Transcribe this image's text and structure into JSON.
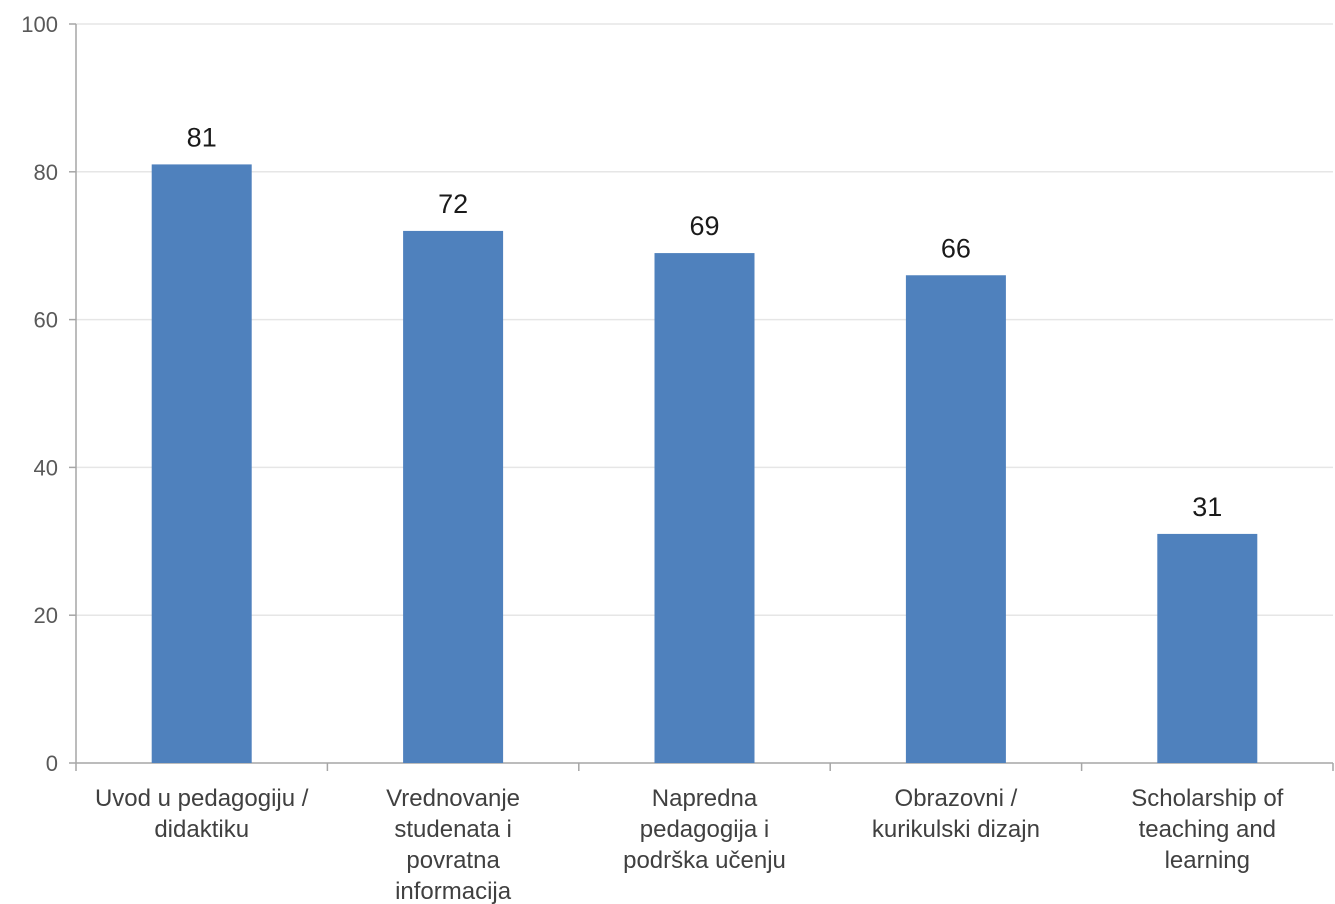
{
  "chart_data": {
    "type": "bar",
    "categories": [
      [
        "Uvod u pedagogiju /",
        "didaktiku"
      ],
      [
        "Vrednovanje",
        "studenata i",
        "povratna",
        "informacija"
      ],
      [
        "Napredna",
        "pedagogija i",
        "podrška učenju"
      ],
      [
        "Obrazovni /",
        "kurikulski dizajn"
      ],
      [
        "Scholarship of",
        "teaching and",
        "learning"
      ]
    ],
    "values": [
      81,
      72,
      69,
      66,
      31
    ],
    "data_labels": [
      "81",
      "72",
      "69",
      "66",
      "31"
    ],
    "ylim": [
      0,
      100
    ],
    "yticks": [
      0,
      20,
      40,
      60,
      80,
      100
    ],
    "grid": true,
    "legend": "none",
    "bar_color": "#4F81BD"
  }
}
